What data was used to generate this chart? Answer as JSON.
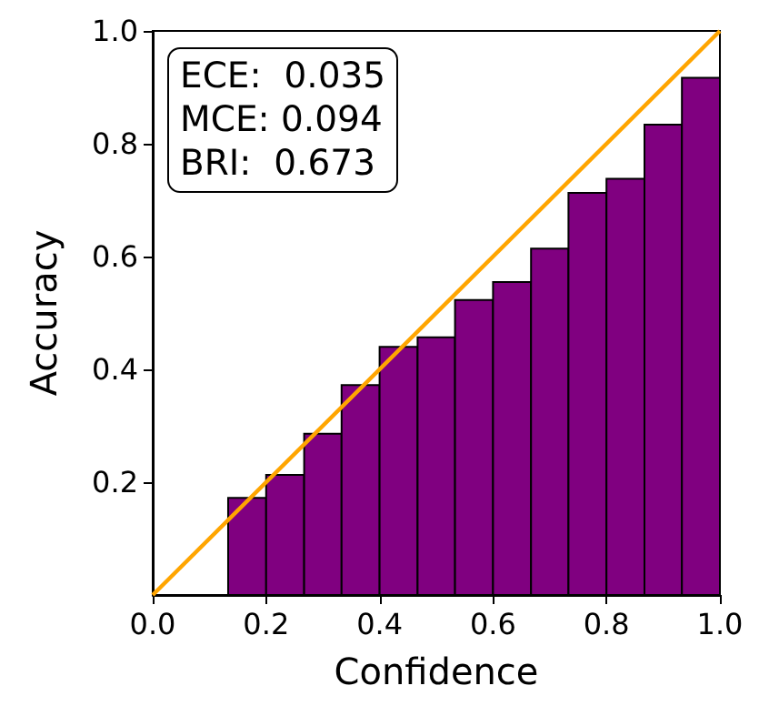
{
  "chart_data": {
    "type": "histogram",
    "xlabel": "Confidence",
    "ylabel": "Accuracy",
    "bins": [
      0.133,
      0.2,
      0.267,
      0.333,
      0.4,
      0.467,
      0.533,
      0.6,
      0.667,
      0.733,
      0.8,
      0.867,
      0.933,
      1.0
    ],
    "values": [
      0.172,
      0.213,
      0.286,
      0.372,
      0.44,
      0.457,
      0.523,
      0.555,
      0.614,
      0.713,
      0.738,
      0.834,
      0.917
    ],
    "color": "#800080",
    "series": [
      {
        "type": "line",
        "color": "#ffa500",
        "x": [
          0,
          1
        ],
        "values": [
          0,
          1
        ]
      }
    ],
    "xlim": [
      0,
      1
    ],
    "ylim": [
      0,
      1
    ],
    "xticks": [
      {
        "value": 0,
        "label": "0.0"
      },
      0.2,
      0.4,
      0.6,
      0.8,
      {
        "value": 1,
        "label": "1.0"
      }
    ],
    "yticks": [
      0.2,
      0.4,
      0.6,
      0.8,
      {
        "value": 1,
        "label": "1.0"
      }
    ],
    "annotations": [
      "ECE:  0.035",
      "MCE: 0.094",
      "BRI:  0.673"
    ],
    "grid": false
  }
}
